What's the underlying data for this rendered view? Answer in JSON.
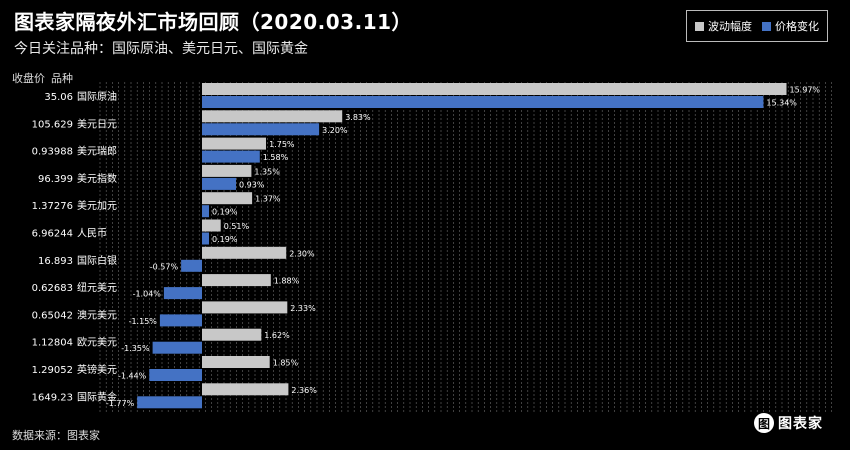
{
  "title": "图表家隔夜外汇市场回顾（2020.03.11）",
  "subtitle": "今日关注品种：国际原油、美元日元、国际黄金",
  "column_headers": {
    "close": "收盘价",
    "name": "品种"
  },
  "source": "数据来源：图表家",
  "logo": {
    "mark": "图",
    "text": "图表家"
  },
  "colors": {
    "range": "#c8c8c8",
    "change": "#4472c4",
    "background": "#000000"
  },
  "chart_data": {
    "type": "bar",
    "orientation": "horizontal",
    "categories": [
      "国际原油",
      "美元日元",
      "美元瑞郎",
      "美元指数",
      "美元加元",
      "人民币",
      "国际白银",
      "纽元美元",
      "澳元美元",
      "欧元美元",
      "英镑美元",
      "国际黄金"
    ],
    "close_prices": [
      "35.06",
      "105.629",
      "0.93988",
      "96.399",
      "1.37276",
      "6.96244",
      "16.893",
      "0.62683",
      "0.65042",
      "1.12804",
      "1.29052",
      "1649.23"
    ],
    "series": [
      {
        "name": "波动幅度",
        "values": [
          15.97,
          3.83,
          1.75,
          1.35,
          1.37,
          0.51,
          2.3,
          1.88,
          2.33,
          1.62,
          1.85,
          2.36
        ],
        "labels": [
          "15.97%",
          "3.83%",
          "1.75%",
          "1.35%",
          "1.37%",
          "0.51%",
          "2.30%",
          "1.88%",
          "2.33%",
          "1.62%",
          "1.85%",
          "2.36%"
        ]
      },
      {
        "name": "价格变化",
        "values": [
          15.34,
          3.2,
          1.58,
          0.93,
          0.19,
          0.19,
          -0.57,
          -1.04,
          -1.15,
          -1.35,
          -1.44,
          -1.77
        ],
        "labels": [
          "15.34%",
          "3.20%",
          "1.58%",
          "0.93%",
          "0.19%",
          "0.19%",
          "-0.57%",
          "-1.04%",
          "-1.15%",
          "-1.35%",
          "-1.44%",
          "-1.77%"
        ]
      }
    ],
    "xlim": [
      -2,
      16
    ],
    "grid": true,
    "legend_position": "top-right"
  }
}
